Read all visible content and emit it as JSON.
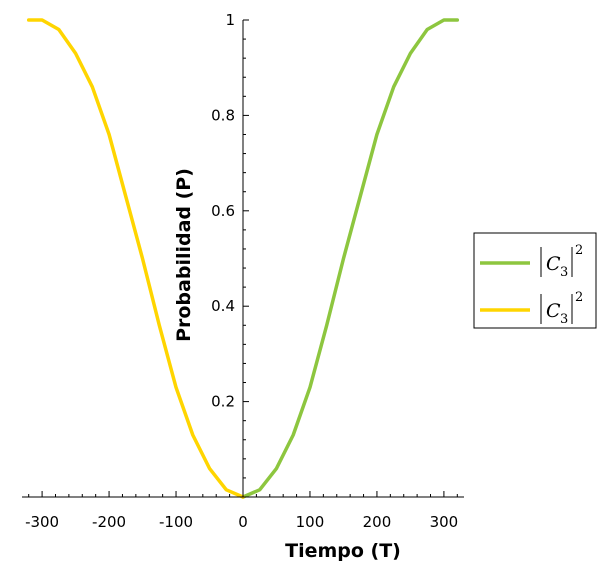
{
  "chart_data": {
    "type": "line",
    "title": "",
    "xlabel": "Tiempo (T)",
    "ylabel": "Probabilidad (P)",
    "xlim": [
      -330,
      330
    ],
    "ylim": [
      0,
      1
    ],
    "xticks": [
      -300,
      -200,
      -100,
      0,
      100,
      200,
      300
    ],
    "xtick_labels": [
      "-300",
      "-200",
      "-100",
      "0",
      "100",
      "200",
      "300"
    ],
    "yticks": [
      0.2,
      0.4,
      0.6,
      0.8,
      1
    ],
    "ytick_labels": [
      "0.2",
      "0.4",
      "0.6",
      "0.8",
      "1"
    ],
    "grid": false,
    "legend_position": "right",
    "series": [
      {
        "name": "|C3|^2",
        "legend": {
          "base": "C",
          "sub": "3",
          "sup": "2"
        },
        "color": "#8dc63f",
        "x": [
          0,
          25,
          50,
          75,
          100,
          125,
          150,
          175,
          200,
          225,
          250,
          275,
          300,
          310,
          320
        ],
        "y": [
          0,
          0.015,
          0.06,
          0.13,
          0.23,
          0.36,
          0.5,
          0.63,
          0.76,
          0.86,
          0.93,
          0.98,
          1,
          1,
          1
        ]
      },
      {
        "name": "|C3|^2",
        "legend": {
          "base": "C",
          "sub": "3",
          "sup": "2"
        },
        "color": "#ffd500",
        "x": [
          0,
          -25,
          -50,
          -75,
          -100,
          -125,
          -150,
          -175,
          -200,
          -225,
          -250,
          -275,
          -300,
          -310,
          -320
        ],
        "y": [
          0,
          0.015,
          0.06,
          0.13,
          0.23,
          0.36,
          0.5,
          0.63,
          0.76,
          0.86,
          0.93,
          0.98,
          1,
          1,
          1
        ]
      }
    ]
  }
}
